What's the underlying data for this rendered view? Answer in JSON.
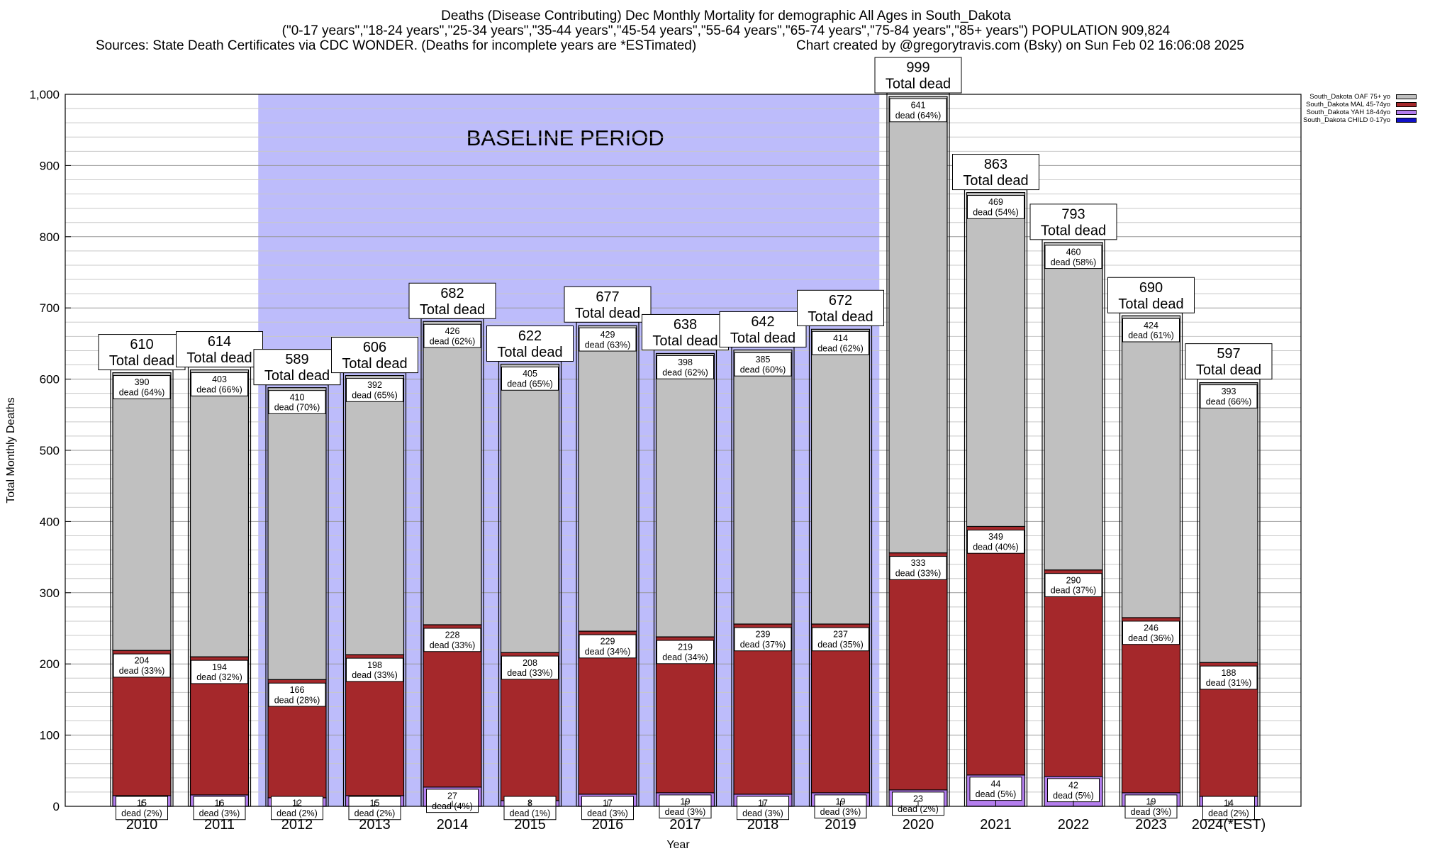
{
  "header": {
    "title": "Deaths (Disease Contributing) Dec Monthly Mortality for demographic All Ages in South_Dakota",
    "subtitle": "(\"0-17 years\",\"18-24 years\",\"25-34 years\",\"35-44 years\",\"45-54 years\",\"55-64 years\",\"65-74 years\",\"75-84 years\",\"85+ years\") POPULATION 909,824",
    "sources": "Sources: State Death Certificates via CDC WONDER. (Deaths for incomplete years are *ESTimated)",
    "credit": "Chart created by @gregorytravis.com (Bsky) on Sun Feb 02 16:06:08 2025"
  },
  "legend": [
    {
      "label": "South_Dakota OAF 75+ yo",
      "color": "#c0c0c0"
    },
    {
      "label": "South_Dakota MAL 45-74yo",
      "color": "#a5282b"
    },
    {
      "label": "South_Dakota YAH 18-44yo",
      "color": "#b47eee"
    },
    {
      "label": "South_Dakota CHILD 0-17yo",
      "color": "#1010c8"
    }
  ],
  "colors": {
    "baseline": "#bdbcfb",
    "oaf": "#c0c0c0",
    "mal": "#a5282b",
    "yah": "#b47eee",
    "child": "#1010c8",
    "grid": "#c8c8c8"
  },
  "chart_data": {
    "type": "bar",
    "stacked": true,
    "xlabel": "Year",
    "ylabel": "Total Monthly Deaths",
    "ylim": [
      0,
      1000
    ],
    "yticks": [
      0,
      100,
      200,
      300,
      400,
      500,
      600,
      700,
      800,
      900,
      1000
    ],
    "ytick_labels": [
      "0",
      "100",
      "200",
      "300",
      "400",
      "500",
      "600",
      "700",
      "800",
      "900",
      "1,000"
    ],
    "grid": "horizontal",
    "legend_position": "top-right",
    "categories": [
      "2010",
      "2011",
      "2012",
      "2013",
      "2014",
      "2015",
      "2016",
      "2017",
      "2018",
      "2019",
      "2020",
      "2021",
      "2022",
      "2023",
      "2024(*EST)"
    ],
    "baseline_period": {
      "label": "BASELINE PERIOD",
      "start": "2012",
      "end": "2019"
    },
    "total_label": "Total dead",
    "segment_label": "dead",
    "totals": [
      610,
      614,
      589,
      606,
      682,
      622,
      677,
      638,
      642,
      672,
      999,
      863,
      793,
      690,
      597
    ],
    "series": [
      {
        "name": "South_Dakota CHILD 0-17yo",
        "key": "child",
        "values": [
          0,
          0,
          0,
          0,
          0,
          0,
          0,
          0,
          0,
          0,
          0,
          0,
          0,
          0,
          0
        ],
        "labels": [
          "",
          "",
          "",
          "",
          "",
          "",
          "",
          "",
          "",
          "",
          "",
          "",
          "",
          "",
          ""
        ]
      },
      {
        "name": "South_Dakota YAH 18-44yo",
        "key": "yah",
        "values": [
          15,
          16,
          12,
          15,
          27,
          8,
          17,
          19,
          17,
          19,
          23,
          44,
          42,
          19,
          14
        ],
        "labels": [
          "(2%)",
          "(3%)",
          "(2%)",
          "(2%)",
          "(4%)",
          "(1%)",
          "(3%)",
          "(3%)",
          "(3%)",
          "(3%)",
          "(2%)",
          "(5%)",
          "(5%)",
          "(3%)",
          "(2%)"
        ]
      },
      {
        "name": "South_Dakota MAL 45-74yo",
        "key": "mal",
        "values": [
          204,
          194,
          166,
          198,
          228,
          208,
          229,
          219,
          239,
          237,
          333,
          349,
          290,
          246,
          188
        ],
        "labels": [
          "(33%)",
          "(32%)",
          "(28%)",
          "(33%)",
          "(33%)",
          "(33%)",
          "(34%)",
          "(34%)",
          "(37%)",
          "(35%)",
          "(33%)",
          "(40%)",
          "(37%)",
          "(36%)",
          "(31%)"
        ]
      },
      {
        "name": "South_Dakota OAF 75+ yo",
        "key": "oaf",
        "values": [
          390,
          403,
          410,
          392,
          426,
          405,
          429,
          398,
          385,
          414,
          641,
          469,
          460,
          424,
          393
        ],
        "labels": [
          "(64%)",
          "(66%)",
          "(70%)",
          "(65%)",
          "(62%)",
          "(65%)",
          "(63%)",
          "(62%)",
          "(60%)",
          "(62%)",
          "(64%)",
          "(54%)",
          "(58%)",
          "(61%)",
          "(66%)"
        ]
      }
    ]
  }
}
